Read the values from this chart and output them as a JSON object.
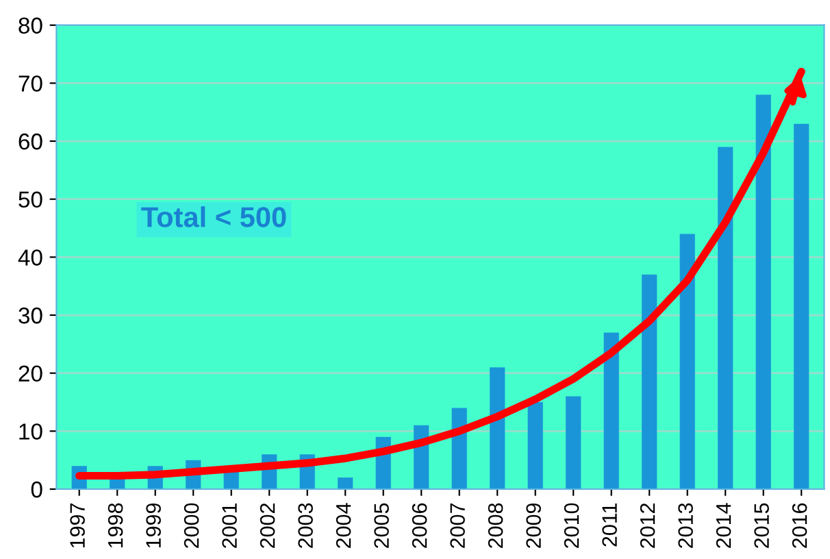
{
  "chart_data": {
    "type": "bar",
    "categories": [
      "1997",
      "1998",
      "1999",
      "2000",
      "2001",
      "2002",
      "2003",
      "2004",
      "2005",
      "2006",
      "2007",
      "2008",
      "2009",
      "2010",
      "2011",
      "2012",
      "2013",
      "2014",
      "2015",
      "2016"
    ],
    "series": [
      {
        "color": "#1a96d8",
        "values": [
          4,
          2,
          4,
          5,
          3,
          6,
          6,
          2,
          9,
          11,
          14,
          21,
          15,
          16,
          27,
          37,
          44,
          59,
          68,
          63
        ]
      },
      {
        "type": "line",
        "color": "#ff0000",
        "values": [
          2.3,
          2.3,
          2.5,
          3,
          3.5,
          4,
          4.5,
          5.3,
          6.5,
          8,
          10,
          12.5,
          15.5,
          19,
          23.5,
          29,
          36,
          46,
          58,
          72
        ]
      }
    ],
    "ylim": [
      0,
      80
    ],
    "yticks": [
      0,
      10,
      20,
      30,
      40,
      50,
      60,
      70,
      80
    ],
    "grid": "y",
    "annotations": [
      {
        "text": "Total < 500"
      }
    ]
  }
}
